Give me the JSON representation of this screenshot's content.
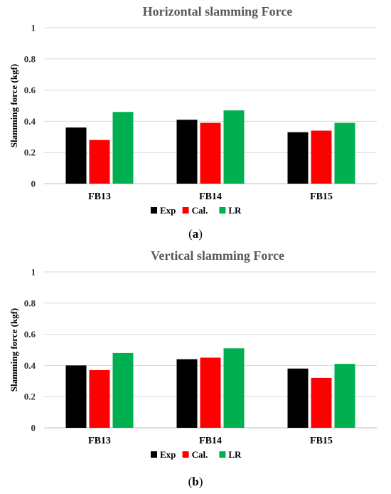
{
  "chart_data": [
    {
      "type": "bar",
      "title": "Horizontal slamming Force",
      "ylabel": "Slamming force (kgf)",
      "xlabel": "",
      "categories": [
        "FB13",
        "FB14",
        "FB15"
      ],
      "series": [
        {
          "name": "Exp",
          "color": "#000000",
          "values": [
            0.36,
            0.41,
            0.33
          ]
        },
        {
          "name": "Cal.",
          "color": "#ff0000",
          "values": [
            0.28,
            0.39,
            0.34
          ]
        },
        {
          "name": "LR",
          "color": "#00b050",
          "values": [
            0.46,
            0.47,
            0.39
          ]
        }
      ],
      "ylim": [
        0,
        1
      ],
      "yticks": [
        "0",
        "0.2",
        "0.4",
        "0.6",
        "0.8",
        "1"
      ],
      "grid": true,
      "legend": "bottom",
      "caption": {
        "open": "(",
        "letter": "a",
        "close": ")"
      }
    },
    {
      "type": "bar",
      "title": "Vertical slamming Force",
      "ylabel": "Slamming force (kgf)",
      "xlabel": "",
      "categories": [
        "FB13",
        "FB14",
        "FB15"
      ],
      "series": [
        {
          "name": "Exp",
          "color": "#000000",
          "values": [
            0.4,
            0.44,
            0.38
          ]
        },
        {
          "name": "Cal.",
          "color": "#ff0000",
          "values": [
            0.37,
            0.45,
            0.32
          ]
        },
        {
          "name": "LR",
          "color": "#00b050",
          "values": [
            0.48,
            0.51,
            0.41
          ]
        }
      ],
      "ylim": [
        0,
        1
      ],
      "yticks": [
        "0",
        "0.2",
        "0.4",
        "0.6",
        "0.8",
        "1"
      ],
      "grid": true,
      "legend": "bottom",
      "caption": {
        "open": "(",
        "letter": "b",
        "close": ")"
      }
    }
  ]
}
